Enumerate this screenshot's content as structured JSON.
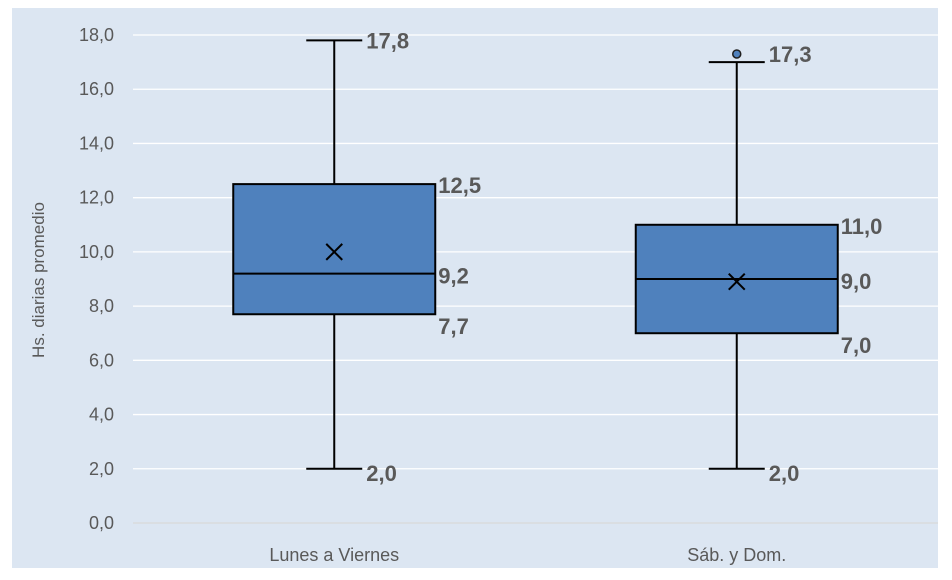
{
  "chart_data": {
    "type": "box",
    "title": "",
    "xlabel": "",
    "ylabel": "Hs. diarias promedio",
    "ylim": [
      0,
      18
    ],
    "yticks": [
      {
        "value": 0,
        "label": "0,0"
      },
      {
        "value": 2,
        "label": "2,0"
      },
      {
        "value": 4,
        "label": "4,0"
      },
      {
        "value": 6,
        "label": "6,0"
      },
      {
        "value": 8,
        "label": "8,0"
      },
      {
        "value": 10,
        "label": "10,0"
      },
      {
        "value": 12,
        "label": "12,0"
      },
      {
        "value": 14,
        "label": "14,0"
      },
      {
        "value": 16,
        "label": "16,0"
      },
      {
        "value": 18,
        "label": "18,0"
      }
    ],
    "grid": true,
    "colors": {
      "plot_background": "#dce6f2",
      "page_background": "#ffffff",
      "box_fill": "#4f81bd",
      "line": "#000000",
      "grid": "#ffffff",
      "text": "#595959"
    },
    "categories": [
      "Lunes a Viernes",
      "Sáb. y Dom."
    ],
    "boxes": [
      {
        "category": "Lunes a Viernes",
        "min": 2.0,
        "q1": 7.7,
        "median": 9.2,
        "q3": 12.5,
        "max": 17.8,
        "mean": 10.0,
        "outliers": [],
        "labels": {
          "max": "17,8",
          "q3": "12,5",
          "median": "9,2",
          "q1": "7,7",
          "min": "2,0"
        }
      },
      {
        "category": "Sáb. y Dom.",
        "min": 2.0,
        "q1": 7.0,
        "median": 9.0,
        "q3": 11.0,
        "max": 17.0,
        "mean": 8.9,
        "outliers": [
          17.3
        ],
        "labels": {
          "max": "17,3",
          "q3": "11,0",
          "median": "9,0",
          "q1": "7,0",
          "min": "2,0"
        }
      }
    ]
  }
}
